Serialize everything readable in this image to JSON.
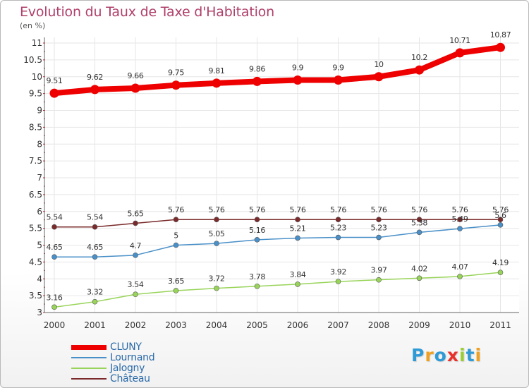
{
  "chart_data": {
    "type": "line",
    "title": "Evolution du Taux de Taxe d'Habitation",
    "ylabel": "(en %)",
    "xlabel": "",
    "categories": [
      "2000",
      "2001",
      "2002",
      "2003",
      "2004",
      "2005",
      "2006",
      "2007",
      "2008",
      "2009",
      "2010",
      "2011"
    ],
    "yticks": [
      "3",
      "3.5",
      "4",
      "4.5",
      "5",
      "5.5",
      "6",
      "6.5",
      "7",
      "7.5",
      "8",
      "8.5",
      "9",
      "9.5",
      "10",
      "10.5",
      "11"
    ],
    "ylim": [
      3,
      11
    ],
    "grid": true,
    "series": [
      {
        "name": "CLUNY",
        "color": "#ee0000",
        "values": [
          9.51,
          9.62,
          9.66,
          9.75,
          9.81,
          9.86,
          9.9,
          9.9,
          10,
          10.2,
          10.71,
          10.87
        ],
        "labels": [
          "9.51",
          "9.62",
          "9.66",
          "9.75",
          "9.81",
          "9.86",
          "9.9",
          "9.9",
          "10",
          "10.2",
          "10.71",
          "10.87"
        ]
      },
      {
        "name": "Lournand",
        "color": "#4a90c8",
        "values": [
          4.65,
          4.65,
          4.7,
          5,
          5.05,
          5.16,
          5.21,
          5.23,
          5.23,
          5.38,
          5.49,
          5.6
        ],
        "labels": [
          "4.65",
          "4.65",
          "4.7",
          "5",
          "5.05",
          "5.16",
          "5.21",
          "5.23",
          "5.23",
          "5.38",
          "5.49",
          "5.6"
        ]
      },
      {
        "name": "Jalogny",
        "color": "#99d45a",
        "values": [
          3.16,
          3.32,
          3.54,
          3.65,
          3.72,
          3.78,
          3.84,
          3.92,
          3.97,
          4.02,
          4.07,
          4.19
        ],
        "labels": [
          "3.16",
          "3.32",
          "3.54",
          "3.65",
          "3.72",
          "3.78",
          "3.84",
          "3.92",
          "3.97",
          "4.02",
          "4.07",
          "4.19"
        ]
      },
      {
        "name": "Château",
        "color": "#7a2a2a",
        "values": [
          5.54,
          5.54,
          5.65,
          5.76,
          5.76,
          5.76,
          5.76,
          5.76,
          5.76,
          5.76,
          5.76,
          5.76
        ],
        "labels": [
          "5.54",
          "5.54",
          "5.65",
          "5.76",
          "5.76",
          "5.76",
          "5.76",
          "5.76",
          "5.76",
          "5.76",
          "5.76",
          "5.76"
        ]
      }
    ]
  },
  "logo": {
    "letters": [
      "P",
      "r",
      "o",
      "x",
      "i",
      "t",
      "i"
    ],
    "colors": [
      "#2e9ad6",
      "#f0a020",
      "#2e9ad6",
      "#e8312a",
      "#9acd32",
      "#2e9ad6",
      "#f0a020"
    ]
  }
}
